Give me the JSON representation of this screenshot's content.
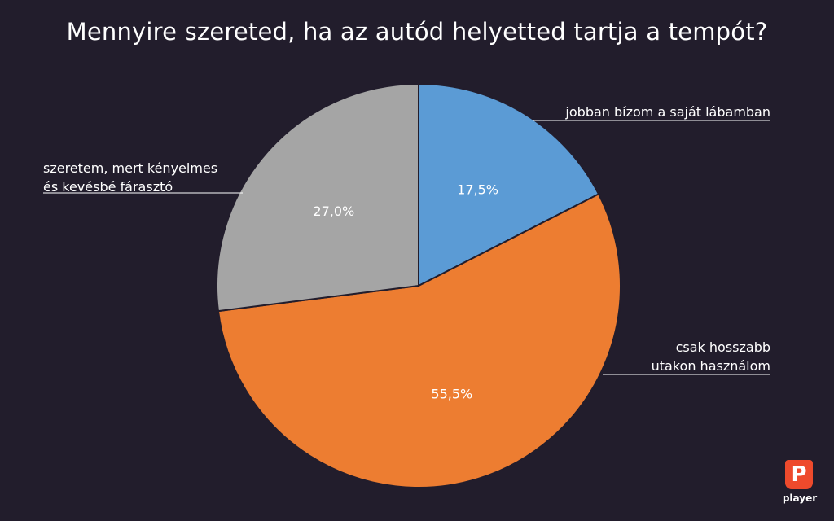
{
  "chart_data": {
    "type": "pie",
    "title": "Mennyire szereted, ha az autód helyetted tartja a tempót?",
    "slices": [
      {
        "label_lines": [
          "jobban bízom a saját lábamban"
        ],
        "value": 17.5,
        "value_label": "17,5%",
        "color": "#5b9bd5"
      },
      {
        "label_lines": [
          "csak hosszabb",
          "utakon használom"
        ],
        "value": 55.5,
        "value_label": "55,5%",
        "color": "#ed7d31"
      },
      {
        "label_lines": [
          "szeretem, mert kényelmes",
          "és kevésbé fárasztó"
        ],
        "value": 27.0,
        "value_label": "27,0%",
        "color": "#a5a5a5"
      }
    ],
    "start": "12 o'clock",
    "direction": "clockwise"
  },
  "logo": {
    "badge": "P",
    "text": "player"
  }
}
